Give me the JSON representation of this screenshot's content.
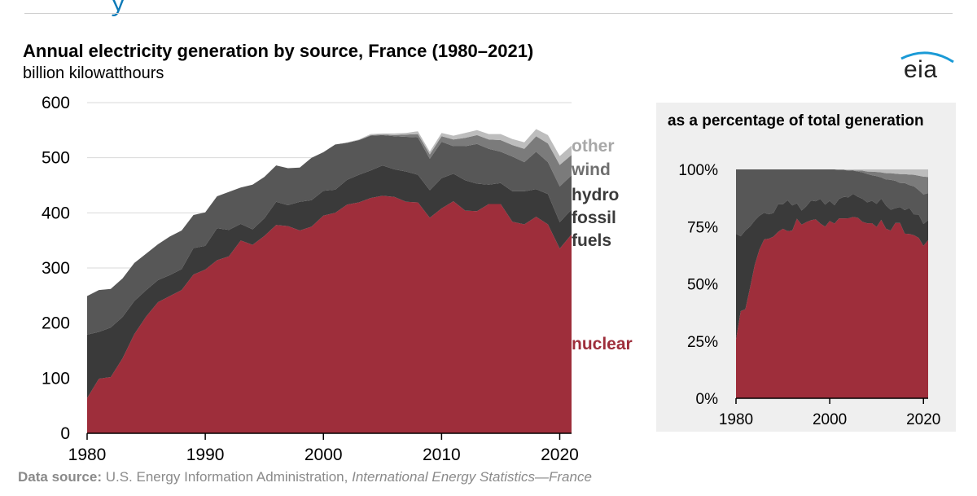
{
  "header": {
    "title": "Annual electricity generation by source, France (1980–2021)",
    "subtitle": "billion kilowatthours",
    "logo": "eia"
  },
  "source": {
    "label": "Data source:",
    "text": "U.S. Energy Information Administration,",
    "publication": "International Energy Statistics—France"
  },
  "colors": {
    "nuclear": "#9e2e3b",
    "fossil": "#3a3a3a",
    "hydro": "#575757",
    "wind": "#7b7b7b",
    "other": "#bdbdbd",
    "nuclear_label": "#9e2e3b",
    "other_label": "#a8a8a8",
    "wind_label": "#6f6f6f",
    "hydro_label": "#3a3a3a",
    "fossil_label": "#3a3a3a"
  },
  "legend": {
    "other": "other",
    "wind": "wind",
    "hydro": "hydro",
    "fossil_line1": "fossil",
    "fossil_line2": "fuels",
    "nuclear": "nuclear"
  },
  "chart_data": [
    {
      "type": "area",
      "stacked": true,
      "title": "Annual electricity generation by source, France (1980–2021)",
      "ylabel": "billion kilowatthours",
      "xlabel": "",
      "x": [
        1980,
        1981,
        1982,
        1983,
        1984,
        1985,
        1986,
        1987,
        1988,
        1989,
        1990,
        1991,
        1992,
        1993,
        1994,
        1995,
        1996,
        1997,
        1998,
        1999,
        2000,
        2001,
        2002,
        2003,
        2004,
        2005,
        2006,
        2007,
        2008,
        2009,
        2010,
        2011,
        2012,
        2013,
        2014,
        2015,
        2016,
        2017,
        2018,
        2019,
        2020,
        2021
      ],
      "xticks": [
        1980,
        1990,
        2000,
        2010,
        2020
      ],
      "yticks": [
        0,
        100,
        200,
        300,
        400,
        500,
        600
      ],
      "xlim": [
        1980,
        2021
      ],
      "ylim": [
        0,
        600
      ],
      "series": [
        {
          "name": "nuclear",
          "values": [
            64,
            99,
            102,
            136,
            180,
            212,
            238,
            249,
            260,
            288,
            297,
            314,
            321,
            350,
            342,
            358,
            378,
            376,
            368,
            375,
            395,
            400,
            415,
            419,
            427,
            431,
            429,
            420,
            419,
            391,
            408,
            421,
            404,
            403,
            416,
            416,
            384,
            379,
            393,
            379,
            335,
            361
          ]
        },
        {
          "name": "fossil fuels",
          "values": [
            115,
            85,
            90,
            75,
            60,
            48,
            40,
            38,
            38,
            48,
            43,
            58,
            48,
            30,
            28,
            32,
            42,
            38,
            52,
            48,
            45,
            42,
            45,
            50,
            50,
            55,
            50,
            55,
            50,
            50,
            55,
            50,
            55,
            50,
            35,
            38,
            55,
            60,
            50,
            55,
            48,
            45
          ]
        },
        {
          "name": "hydro",
          "values": [
            70,
            76,
            70,
            70,
            69,
            66,
            65,
            70,
            70,
            60,
            61,
            58,
            69,
            66,
            81,
            75,
            66,
            67,
            62,
            77,
            70,
            82,
            67,
            63,
            63,
            55,
            60,
            63,
            68,
            57,
            66,
            50,
            62,
            72,
            65,
            57,
            63,
            53,
            68,
            58,
            65,
            62
          ]
        },
        {
          "name": "wind",
          "values": [
            0,
            0,
            0,
            0,
            0,
            0,
            0,
            0,
            0,
            0,
            0,
            0,
            0,
            0,
            0,
            0,
            0,
            0,
            0,
            0,
            0,
            0,
            0,
            0,
            1,
            1,
            2,
            4,
            6,
            8,
            10,
            12,
            15,
            16,
            17,
            21,
            21,
            24,
            28,
            34,
            39,
            37
          ]
        },
        {
          "name": "other",
          "values": [
            0,
            0,
            0,
            0,
            0,
            0,
            0,
            0,
            0,
            0,
            0,
            0,
            0,
            0,
            0,
            0,
            0,
            0,
            0,
            0,
            0,
            0,
            1,
            1,
            2,
            2,
            3,
            3,
            5,
            5,
            6,
            7,
            9,
            9,
            10,
            11,
            11,
            12,
            13,
            15,
            16,
            17
          ]
        }
      ]
    },
    {
      "type": "area",
      "stacked": true,
      "percent": true,
      "title": "as a percentage of total generation",
      "x": [
        1980,
        1981,
        1982,
        1983,
        1984,
        1985,
        1986,
        1987,
        1988,
        1989,
        1990,
        1991,
        1992,
        1993,
        1994,
        1995,
        1996,
        1997,
        1998,
        1999,
        2000,
        2001,
        2002,
        2003,
        2004,
        2005,
        2006,
        2007,
        2008,
        2009,
        2010,
        2011,
        2012,
        2013,
        2014,
        2015,
        2016,
        2017,
        2018,
        2019,
        2020,
        2021
      ],
      "xticks": [
        1980,
        2000,
        2020
      ],
      "yticks": [
        "0%",
        "25%",
        "50%",
        "75%",
        "100%"
      ],
      "ylim": [
        0,
        100
      ],
      "series_from": "chart 1 series, normalized to 100% of total generation"
    }
  ]
}
